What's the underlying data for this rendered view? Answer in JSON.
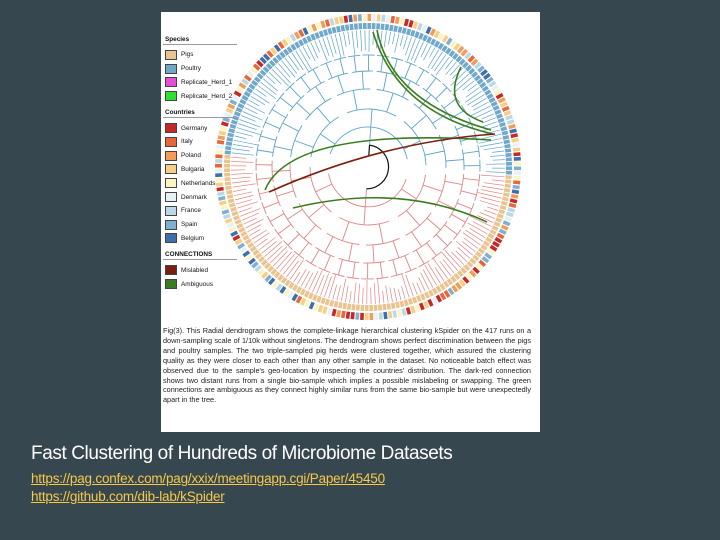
{
  "figure": {
    "legend": {
      "species": {
        "title": "Species",
        "items": [
          {
            "label": "Pigs",
            "color": "#e9c48f"
          },
          {
            "label": "Poultry",
            "color": "#6fa8c9"
          },
          {
            "label": "Replicate_Herd_1",
            "color": "#e44fd8"
          },
          {
            "label": "Replicate_Herd_2",
            "color": "#2fe02f"
          }
        ]
      },
      "countries": {
        "title": "Countries",
        "items": [
          {
            "label": "Germany",
            "color": "#c62828"
          },
          {
            "label": "Italy",
            "color": "#e8673a"
          },
          {
            "label": "Poland",
            "color": "#f39c5a"
          },
          {
            "label": "Bulgaria",
            "color": "#f7cf84"
          },
          {
            "label": "Netherlands",
            "color": "#fbf5c4"
          },
          {
            "label": "Denmark",
            "color": "#e6f1f6"
          },
          {
            "label": "France",
            "color": "#b9d8e8"
          },
          {
            "label": "Spain",
            "color": "#7fb0d3"
          },
          {
            "label": "Belgium",
            "color": "#3e6fab"
          }
        ]
      },
      "connections": {
        "title": "CONNECTIONS",
        "items": [
          {
            "label": "Mislabled",
            "color": "#7b1f0f"
          },
          {
            "label": "Ambiguous",
            "color": "#3a7d1f"
          }
        ]
      }
    },
    "tree_colors": {
      "poultry_branch": "#5fa3c8",
      "pig_branch": "#e08585",
      "root": "#111111"
    },
    "caption": "Fig(3). This Radial dendrogram shows the complete-linkage hierarchical clustering kSpider on the 417 runs on a down-sampling scale of 1/10k without singletons. The dendrogram shows perfect discrimination between the pigs and poultry samples. The two triple-sampled pig herds were clustered together, which assured the clustering quality as they were closer to each other than any other sample in the dataset. No noticeable batch effect was observed due to the sample's geo-location by inspecting the countries' distribution. The dark-red connection shows two distant runs from a single bio-sample which implies a possible mislabeling or swapping. The green connections are ambiguous as they connect highly similar runs from the same bio-sample but were unexpectedly apart in the tree."
  },
  "slide": {
    "title": "Fast Clustering of Hundreds of Microbiome Datasets",
    "links": [
      "https://pag.confex.com/pag/xxix/meetingapp.cgi/Paper/45450",
      "https://github.com/dib-lab/kSpider"
    ]
  }
}
